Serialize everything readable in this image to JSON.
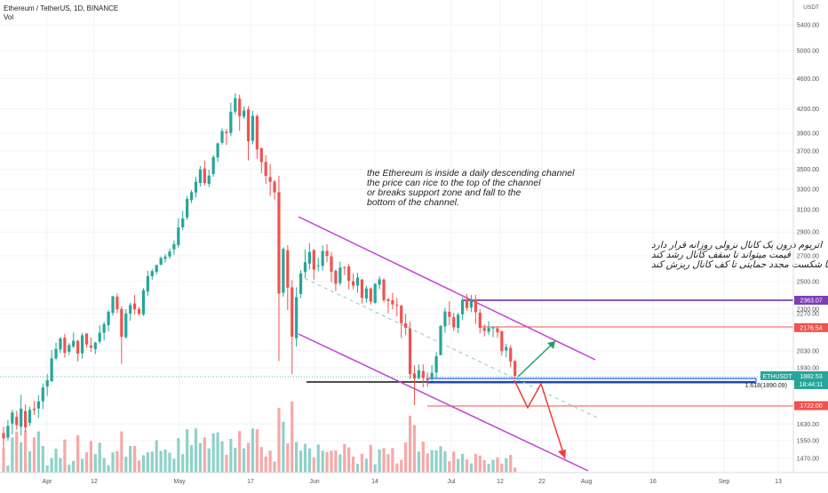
{
  "chart_data": {
    "type": "candlestick",
    "title": "Ethereum / TetherUS, 1D, BINANCE",
    "subtitle": "Vol",
    "currency": "USDT",
    "scale": "log",
    "y_ticks": [
      {
        "v": 5400,
        "label": "5400.00"
      },
      {
        "v": 5000,
        "label": "5000.00"
      },
      {
        "v": 4600,
        "label": "4600.00"
      },
      {
        "v": 4200,
        "label": "4200.00"
      },
      {
        "v": 3900,
        "label": "3900.00"
      },
      {
        "v": 3700,
        "label": "3700.00"
      },
      {
        "v": 3500,
        "label": "3500.00"
      },
      {
        "v": 3300,
        "label": "3300.00"
      },
      {
        "v": 3100,
        "label": "3100.00"
      },
      {
        "v": 2900,
        "label": "2900.00"
      },
      {
        "v": 2700,
        "label": "2700.00"
      },
      {
        "v": 2500,
        "label": "2500.00"
      },
      {
        "v": 2300,
        "label": "2300.00"
      },
      {
        "v": 2270,
        "label": "2270.00"
      },
      {
        "v": 2030,
        "label": "2030.00"
      },
      {
        "v": 1930,
        "label": "1930.00"
      },
      {
        "v": 1630,
        "label": "1630.00"
      },
      {
        "v": 1550,
        "label": "1550.00"
      },
      {
        "v": 1470,
        "label": "1470.00"
      }
    ],
    "x_ticks": [
      "Apr",
      "12",
      "May",
      "17",
      "Jun",
      "14",
      "Jul",
      "12",
      "22",
      "Aug",
      "16",
      "Sep",
      "13"
    ],
    "price_labels": [
      {
        "value": 2363.07,
        "text": "2363.07",
        "color": "#7b3fb5"
      },
      {
        "value": 2176.54,
        "text": "2176.54",
        "color": "#ef5350"
      },
      {
        "value": 1722.0,
        "text": "1722.00",
        "color": "#ef5350"
      }
    ],
    "current_price": {
      "symbol": "ETHUSDT",
      "price": "1882.53",
      "countdown": "18:44:11",
      "value": 1882.53
    },
    "fib_label": "1.618(1890.09)",
    "annotations": [
      "the Ethereum is inside a daily descending channel",
      "the price can rice to the top of the channel",
      "or breaks support zone and fall to the",
      "bottom of the channel."
    ],
    "annotations_fa": [
      "اتریوم درون یک کانال نزولی روزانه قرار دارد",
      "قیمت میتواند تا سقف کانال رشد کند",
      "یا با شکست مجدد حمایتی تا کف کانال ریزش کند"
    ],
    "candles": [
      [
        1586.31,
        1560.67,
        1516.0,
        1615.31,
        6.9
      ],
      [
        1564.24,
        1620.95,
        1550.23,
        1649.86,
        2.0
      ],
      [
        1632.15,
        1686.92,
        1580.5,
        1701.16,
        9.9
      ],
      [
        1665.22,
        1624.16,
        1601.77,
        1695.96,
        11.6
      ],
      [
        1616.43,
        1706.68,
        1574.19,
        1778.95,
        8.5
      ],
      [
        1694.24,
        1613.18,
        1592.05,
        1728.53,
        11.8
      ],
      [
        1635.12,
        1701.12,
        1620.22,
        1716.84,
        6.0
      ],
      [
        1706.11,
        1700.04,
        1675.52,
        1746.28,
        9.9
      ],
      [
        1707.19,
        1744.15,
        1659.19,
        1776.69,
        11.6
      ],
      [
        1745.1,
        1818.79,
        1704.21,
        1841.56,
        7.5
      ],
      [
        1823.92,
        1859.59,
        1773.72,
        1893.44,
        2.0
      ],
      [
        1852.78,
        1985.08,
        1849.67,
        2035.28,
        4.1
      ],
      [
        1984.52,
        2042.32,
        1973.14,
        2080.7,
        6.7
      ],
      [
        2038.29,
        2107.19,
        2016.4,
        2117.43,
        4.1
      ],
      [
        2111.55,
        2017.5,
        1988.74,
        2135.97,
        9.3
      ],
      [
        2024.43,
        2066.11,
        2004.71,
        2078.09,
        2.2
      ],
      [
        2056.45,
        2092.76,
        2046.36,
        2145.2,
        3.3
      ],
      [
        2090.42,
        2012.98,
        1966.06,
        2101.32,
        10.5
      ],
      [
        2014.61,
        2127.45,
        1983.09,
        2142.21,
        3.8
      ],
      [
        2139.08,
        2069.91,
        2049.47,
        2139.08,
        5.7
      ],
      [
        2061.93,
        2049.2,
        2024.18,
        2112.97,
        8.9
      ],
      [
        2040.4,
        2080.72,
        2010.44,
        2086.13,
        5.2
      ],
      [
        2087.28,
        2144.38,
        2073.89,
        2192.11,
        8.4
      ],
      [
        2143.09,
        2199.49,
        2092.98,
        2215.45,
        4.1
      ],
      [
        2193.04,
        2283.5,
        2149.81,
        2294.31,
        2.1
      ],
      [
        2275.1,
        2391.29,
        2257.64,
        2394.21,
        5.7
      ],
      [
        2389.72,
        2300.0,
        2273.58,
        2412.14,
        6.0
      ],
      [
        2302.61,
        2117.51,
        1952.46,
        2320.4,
        11.6
      ],
      [
        2114.67,
        2271.29,
        2106.01,
        2300.8,
        4.5
      ],
      [
        2271.24,
        2329.36,
        2221.13,
        2346.19,
        7.5
      ],
      [
        2340.76,
        2298.77,
        2264.74,
        2401.61,
        7.5
      ],
      [
        2300.8,
        2269.24,
        2255.86,
        2315.92,
        3.4
      ],
      [
        2264.37,
        2435.62,
        2254.42,
        2452.32,
        4.9
      ],
      [
        2425.72,
        2539.61,
        2394.28,
        2580.92,
        5.7
      ],
      [
        2539.37,
        2579.62,
        2512.68,
        2595.89,
        5.9
      ],
      [
        2573.35,
        2625.64,
        2551.5,
        2631.8,
        9.1
      ],
      [
        2628.77,
        2682.8,
        2624.6,
        2695.42,
        6.1
      ],
      [
        2675.35,
        2694.3,
        2646.22,
        2715.94,
        6.5
      ],
      [
        2694.67,
        2736.12,
        2674.91,
        2761.58,
        5.6
      ],
      [
        2752.47,
        2797.74,
        2708.48,
        2828.3,
        3.9
      ],
      [
        2788.5,
        2940.97,
        2766.63,
        3022.21,
        9.7
      ],
      [
        2941.36,
        3021.48,
        2916.18,
        3090.56,
        5.2
      ],
      [
        3030.77,
        3203.86,
        3007.4,
        3232.43,
        12.2
      ],
      [
        3192.54,
        3269.11,
        3163.34,
        3290.31,
        7.7
      ],
      [
        3265.63,
        3372.95,
        3217.62,
        3423.69,
        12.4
      ],
      [
        3359.53,
        3500.0,
        3324.69,
        3535.22,
        8.3
      ],
      [
        3510.16,
        3358.24,
        3337.09,
        3597.41,
        9.9
      ],
      [
        3350.0,
        3435.84,
        3318.56,
        3496.93,
        6.8
      ],
      [
        3451.88,
        3633.01,
        3423.84,
        3656.35,
        11.0
      ],
      [
        3627.5,
        3784.95,
        3580.47,
        3793.01,
        11.3
      ],
      [
        3792.47,
        3927.34,
        3771.67,
        3958.66,
        8.8
      ],
      [
        3919.77,
        3903.54,
        3765.84,
        3953.6,
        5.0
      ],
      [
        3907.07,
        4160.68,
        3866.47,
        4277.74,
        9.5
      ],
      [
        4163.43,
        4335.16,
        4127.65,
        4400.03,
        7.0
      ],
      [
        4329.12,
        4107.57,
        3931.06,
        4381.99,
        11.7
      ],
      [
        4100.2,
        4177.46,
        4072.5,
        4226.56,
        6.8
      ],
      [
        4189.8,
        3809.98,
        3595.25,
        4232.11,
        8.4
      ],
      [
        3814.16,
        4111.44,
        3773.42,
        4173.21,
        12.4
      ],
      [
        4109.47,
        3716.9,
        3614.92,
        4131.28,
        12.2
      ],
      [
        3732.27,
        3577.31,
        3460.77,
        3720.45,
        7.2
      ],
      [
        3579.04,
        3433.41,
        3350.66,
        3653.72,
        4.5
      ],
      [
        3420.46,
        3372.21,
        3231.66,
        3558.3,
        6.2
      ],
      [
        3374.86,
        3267.13,
        3197.78,
        3390.33,
        3.1
      ],
      [
        3268.28,
        2411.2,
        1968.36,
        3434.5,
        18.2
      ],
      [
        2417.38,
        2757.2,
        2388.49,
        2770.43,
        14.3
      ],
      [
        2746.43,
        2454.01,
        2293.77,
        2788.26,
        8.2
      ],
      [
        2456.45,
        2117.91,
        1891.65,
        2510.39,
        20.0
      ],
      [
        2109.02,
        2385.51,
        2055.58,
        2457.25,
        8.6
      ],
      [
        2408.2,
        2562.25,
        2378.44,
        2588.3,
        6.2
      ],
      [
        2572.51,
        2648.86,
        2526.65,
        2752.95,
        8.1
      ],
      [
        2637.77,
        2731.63,
        2591.66,
        2805.48,
        6.8
      ],
      [
        2747.37,
        2591.08,
        2514.29,
        2756.11,
        4.3
      ],
      [
        2617.82,
        2624.57,
        2577.99,
        2687.16,
        7.9
      ],
      [
        2620.09,
        2738.77,
        2582.58,
        2784.15,
        6.1
      ],
      [
        2739.77,
        2699.64,
        2648.11,
        2796.84,
        5.8
      ],
      [
        2695.26,
        2574.23,
        2492.13,
        2732.12,
        6.2
      ],
      [
        2581.16,
        2483.07,
        2430.1,
        2593.37,
        6.2
      ],
      [
        2487.56,
        2605.7,
        2469.25,
        2655.62,
        5.1
      ],
      [
        2608.6,
        2608.4,
        2548.47,
        2619.05,
        8.0
      ],
      [
        2616.53,
        2505.15,
        2441.65,
        2636.63,
        7.1
      ],
      [
        2501.72,
        2468.98,
        2442.59,
        2560.47,
        4.5
      ],
      [
        2469.5,
        2530.04,
        2417.55,
        2565.74,
        2.5
      ],
      [
        2514.86,
        2379.61,
        2339.49,
        2519.21,
        5.3
      ],
      [
        2374.91,
        2448.47,
        2345.86,
        2468.37,
        3.9
      ],
      [
        2447.94,
        2353.28,
        2333.35,
        2453.2,
        7.8
      ],
      [
        2345.13,
        2482.82,
        2337.54,
        2487.65,
        2.3
      ],
      [
        2475.36,
        2516.65,
        2443.16,
        2541.03,
        6.5
      ],
      [
        2514.57,
        2363.95,
        2349.62,
        2524.24,
        6.9
      ],
      [
        2369.23,
        2356.98,
        2271.51,
        2381.59,
        5.2
      ],
      [
        2363.1,
        2334.04,
        2300.4,
        2416.88,
        6.9
      ],
      [
        2332.34,
        2330.66,
        2251.2,
        2380.37,
        2.6
      ],
      [
        2325.03,
        2205.62,
        2109.4,
        2330.52,
        3.6
      ],
      [
        2204.87,
        2175.61,
        2128.75,
        2269.02,
        8.5
      ],
      [
        2169.91,
        1893.75,
        1865.29,
        2216.18,
        16.0
      ],
      [
        1897.27,
        1867.84,
        1725.19,
        1944.27,
        13.4
      ],
      [
        1870.49,
        1915.74,
        1861.7,
        1948.53,
        5.9
      ],
      [
        1911.03,
        1871.23,
        1819.41,
        1948.8,
        8.7
      ],
      [
        1870.24,
        1860.86,
        1821.44,
        1902.38,
        5.4
      ],
      [
        1869.95,
        1900.81,
        1851.06,
        1945.8,
        6.3
      ],
      [
        1902.4,
        1997.56,
        1868.35,
        2022.97,
        6.3
      ],
      [
        2004.37,
        2187.5,
        2003.08,
        2194.92,
        7.4
      ],
      [
        2185.0,
        2285.01,
        2143.38,
        2310.14,
        6.0
      ],
      [
        2282.78,
        2248.08,
        2193.6,
        2355.81,
        3.2
      ],
      [
        2246.69,
        2178.74,
        2156.9,
        2275.79,
        5.9
      ],
      [
        2175.97,
        2262.8,
        2141.86,
        2276.58,
        3.8
      ],
      [
        2265.08,
        2364.09,
        2226.33,
        2384.76,
        5.3
      ],
      [
        2365.06,
        2308.9,
        2288.4,
        2407.88,
        3.7
      ],
      [
        2311.21,
        2363.82,
        2280.9,
        2400.63,
        2.6
      ],
      [
        2364.53,
        2280.22,
        2201.26,
        2402.04,
        5.3
      ],
      [
        2276.13,
        2175.84,
        2140.69,
        2301.68,
        4.8
      ],
      [
        2174.19,
        2155.4,
        2119.38,
        2197.66,
        3.5
      ],
      [
        2149.99,
        2174.36,
        2128.69,
        2219.55,
        2.5
      ],
      [
        2172.69,
        2177.0,
        2115.12,
        2186.6,
        3.6
      ],
      [
        2172.33,
        2145.92,
        2111.98,
        2185.86,
        4.3
      ],
      [
        2153.85,
        2028.5,
        2000.87,
        2155.31,
        2.5
      ],
      [
        2032.66,
        2053.76,
        1992.05,
        2073.33,
        4.0
      ],
      [
        2048.84,
        1966.44,
        1932.79,
        2065.12,
        5.0
      ],
      [
        1969.48,
        1882.53,
        1870.1,
        1975.3,
        1.4
      ]
    ]
  },
  "colors": {
    "up": "#26a69a",
    "down": "#ef5350",
    "up_vol": "#8fd1c8",
    "down_vol": "#f6a9a7",
    "channel": "#c542d6",
    "resistance": "#7b3fb5",
    "support_line": "#111111",
    "blue_zone": "#2962ff",
    "forecast_up": "#22a06b",
    "forecast_down": "#ef3b3b",
    "grid": "#f0f3fa",
    "axis_text": "#555555"
  }
}
